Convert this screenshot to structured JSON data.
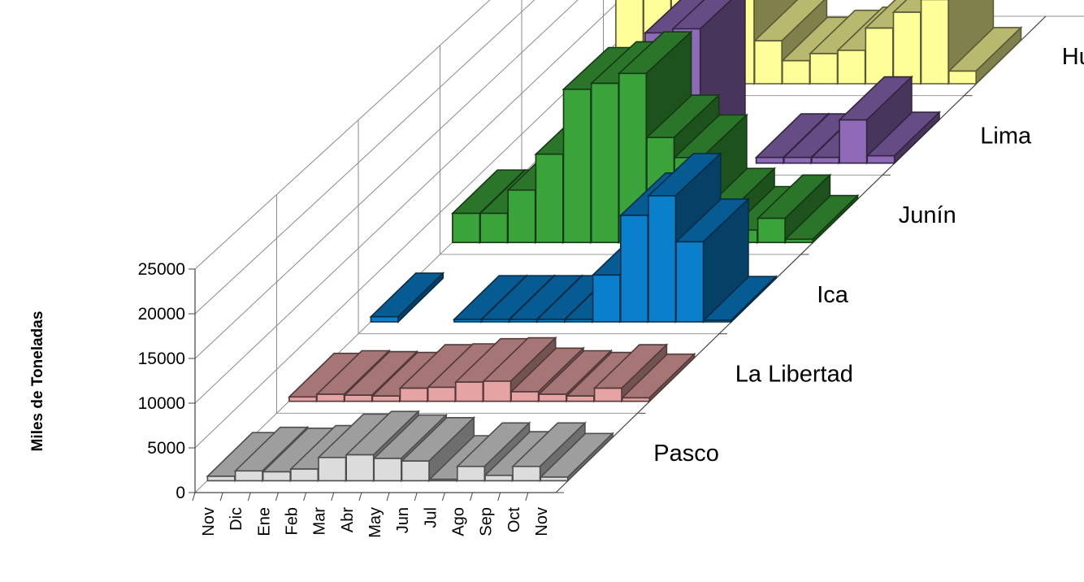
{
  "chart_data": {
    "type": "bar",
    "subtype": "3d-column",
    "ylabel": "Miles de Toneladas",
    "ylim": [
      0,
      25000
    ],
    "y_ticks": [
      "0",
      "5000",
      "10000",
      "15000",
      "20000",
      "25000"
    ],
    "categories": [
      "Nov",
      "Dic",
      "Ene",
      "Feb",
      "Mar",
      "Abr",
      "May",
      "Jun",
      "Jul",
      "Ago",
      "Sep",
      "Oct",
      "Nov"
    ],
    "grid": true,
    "series": [
      {
        "name": "Pasco",
        "color": "#dcdcdc",
        "values": [
          500,
          1100,
          1000,
          1300,
          2600,
          2900,
          2500,
          2200,
          150,
          1600,
          600,
          1600,
          400
        ]
      },
      {
        "name": "La Libertad",
        "color": "#e6a3a3",
        "values": [
          500,
          800,
          700,
          600,
          1500,
          1600,
          2200,
          2300,
          1100,
          800,
          600,
          1500,
          400
        ]
      },
      {
        "name": "Ica",
        "color": "#0a7fcc",
        "values": [
          600,
          null,
          null,
          300,
          300,
          300,
          300,
          300,
          5500,
          12500,
          14800,
          9400,
          200
        ]
      },
      {
        "name": "Junín",
        "color": "#3aa33a",
        "values": [
          3500,
          3500,
          6300,
          10600,
          18400,
          19100,
          20300,
          12600,
          10200,
          3700,
          1500,
          2900,
          400
        ]
      },
      {
        "name": "Lima",
        "color": "#8e6ab8",
        "values": [
          null,
          null,
          null,
          null,
          16000,
          16500,
          null,
          null,
          700,
          700,
          700,
          5300,
          900
        ]
      },
      {
        "name": "Huánuco",
        "color": "#ffff99",
        "values": [
          12800,
          14500,
          15000,
          12800,
          12800,
          5400,
          2900,
          3800,
          4200,
          7000,
          9000,
          10600,
          1600
        ]
      }
    ]
  }
}
